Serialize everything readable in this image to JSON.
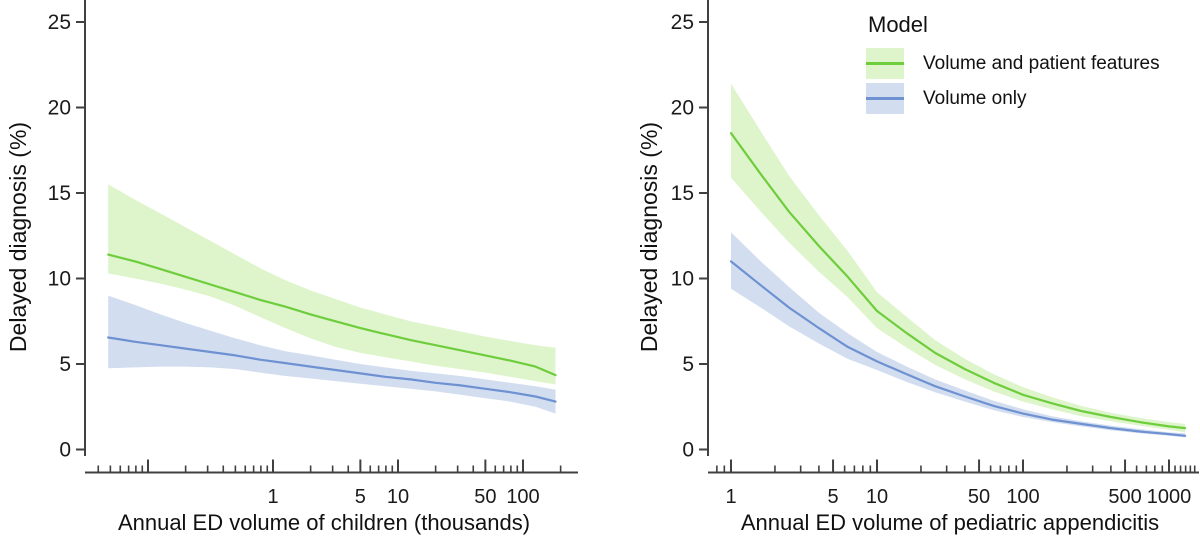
{
  "figure": {
    "legend": {
      "title": "Model",
      "items": [
        {
          "label": "Volume and patient features",
          "line_color": "#6ecd3c",
          "band_color": "#def4cb"
        },
        {
          "label": "Volume only",
          "line_color": "#6e91d2",
          "band_color": "#d2def0"
        }
      ]
    },
    "axis_color": "#404040",
    "text_color": "#1b1b1b"
  },
  "chart_data": [
    {
      "type": "line",
      "panel": "left",
      "xlabel": "Annual ED volume of children (thousands)",
      "ylabel": "Delayed diagnosis (%)",
      "x_scale": "log10",
      "x_range": [
        0.04,
        280
      ],
      "ylim": [
        0,
        26
      ],
      "grid": false,
      "y_axis": {
        "ticks": [
          0,
          5,
          10,
          15,
          20,
          25
        ]
      },
      "x_axis": {
        "labeled_ticks": [
          1,
          5,
          10,
          50,
          100
        ],
        "tall_ticks": [
          0.1,
          1,
          5,
          10,
          50,
          100
        ],
        "minor_ticks": [
          0.04,
          0.05,
          0.06,
          0.07,
          0.08,
          0.09,
          0.2,
          0.3,
          0.4,
          0.5,
          0.6,
          0.7,
          0.8,
          0.9,
          2,
          3,
          4,
          6,
          7,
          8,
          9,
          20,
          30,
          40,
          60,
          70,
          80,
          90,
          200
        ]
      },
      "series": [
        {
          "name": "Volume and patient features",
          "line_color": "#6ecd3c",
          "band_color": "#def4cb",
          "points": [
            {
              "x": 0.048,
              "lo": 10.3,
              "mid": 11.4,
              "hi": 15.5
            },
            {
              "x": 0.079,
              "lo": 10.0,
              "mid": 11.0,
              "hi": 14.6
            },
            {
              "x": 0.126,
              "lo": 9.7,
              "mid": 10.55,
              "hi": 13.8
            },
            {
              "x": 0.2,
              "lo": 9.35,
              "mid": 10.1,
              "hi": 13.0
            },
            {
              "x": 0.316,
              "lo": 8.95,
              "mid": 9.65,
              "hi": 12.2
            },
            {
              "x": 0.5,
              "lo": 8.4,
              "mid": 9.2,
              "hi": 11.4
            },
            {
              "x": 0.79,
              "lo": 7.75,
              "mid": 8.75,
              "hi": 10.6
            },
            {
              "x": 1.26,
              "lo": 7.1,
              "mid": 8.35,
              "hi": 9.9
            },
            {
              "x": 2.0,
              "lo": 6.5,
              "mid": 7.9,
              "hi": 9.3
            },
            {
              "x": 3.16,
              "lo": 6.0,
              "mid": 7.5,
              "hi": 8.8
            },
            {
              "x": 5.0,
              "lo": 5.65,
              "mid": 7.1,
              "hi": 8.3
            },
            {
              "x": 7.9,
              "lo": 5.4,
              "mid": 6.75,
              "hi": 7.9
            },
            {
              "x": 12.6,
              "lo": 5.15,
              "mid": 6.4,
              "hi": 7.5
            },
            {
              "x": 20,
              "lo": 4.9,
              "mid": 6.1,
              "hi": 7.2
            },
            {
              "x": 31.6,
              "lo": 4.7,
              "mid": 5.8,
              "hi": 6.9
            },
            {
              "x": 50,
              "lo": 4.5,
              "mid": 5.5,
              "hi": 6.6
            },
            {
              "x": 79,
              "lo": 4.25,
              "mid": 5.2,
              "hi": 6.35
            },
            {
              "x": 126,
              "lo": 4.0,
              "mid": 4.85,
              "hi": 6.1
            },
            {
              "x": 182,
              "lo": 3.8,
              "mid": 4.35,
              "hi": 5.95
            }
          ]
        },
        {
          "name": "Volume only",
          "line_color": "#6e91d2",
          "band_color": "#d2def0",
          "points": [
            {
              "x": 0.048,
              "lo": 4.75,
              "mid": 6.55,
              "hi": 9.0
            },
            {
              "x": 0.079,
              "lo": 4.8,
              "mid": 6.3,
              "hi": 8.45
            },
            {
              "x": 0.126,
              "lo": 4.85,
              "mid": 6.1,
              "hi": 7.9
            },
            {
              "x": 0.2,
              "lo": 4.85,
              "mid": 5.9,
              "hi": 7.4
            },
            {
              "x": 0.316,
              "lo": 4.8,
              "mid": 5.7,
              "hi": 6.95
            },
            {
              "x": 0.5,
              "lo": 4.7,
              "mid": 5.5,
              "hi": 6.5
            },
            {
              "x": 0.79,
              "lo": 4.5,
              "mid": 5.25,
              "hi": 6.1
            },
            {
              "x": 1.26,
              "lo": 4.3,
              "mid": 5.05,
              "hi": 5.75
            },
            {
              "x": 2.0,
              "lo": 4.15,
              "mid": 4.85,
              "hi": 5.5
            },
            {
              "x": 3.16,
              "lo": 4.0,
              "mid": 4.65,
              "hi": 5.25
            },
            {
              "x": 5.0,
              "lo": 3.85,
              "mid": 4.45,
              "hi": 5.0
            },
            {
              "x": 7.9,
              "lo": 3.7,
              "mid": 4.25,
              "hi": 4.8
            },
            {
              "x": 12.6,
              "lo": 3.55,
              "mid": 4.1,
              "hi": 4.6
            },
            {
              "x": 20,
              "lo": 3.4,
              "mid": 3.9,
              "hi": 4.45
            },
            {
              "x": 31.6,
              "lo": 3.2,
              "mid": 3.75,
              "hi": 4.3
            },
            {
              "x": 50,
              "lo": 3.0,
              "mid": 3.55,
              "hi": 4.1
            },
            {
              "x": 79,
              "lo": 2.8,
              "mid": 3.35,
              "hi": 3.9
            },
            {
              "x": 126,
              "lo": 2.5,
              "mid": 3.1,
              "hi": 3.7
            },
            {
              "x": 182,
              "lo": 2.1,
              "mid": 2.8,
              "hi": 3.5
            }
          ]
        }
      ]
    },
    {
      "type": "line",
      "panel": "right",
      "xlabel": "Annual ED volume of pediatric appendicitis",
      "ylabel": "Delayed diagnosis (%)",
      "x_scale": "log10",
      "x_range": [
        0.7,
        1600
      ],
      "ylim": [
        0,
        26
      ],
      "grid": false,
      "y_axis": {
        "ticks": [
          0,
          5,
          10,
          15,
          20,
          25
        ]
      },
      "x_axis": {
        "labeled_ticks": [
          1,
          5,
          10,
          50,
          100,
          500,
          1000
        ],
        "tall_ticks": [
          1,
          5,
          10,
          50,
          100,
          500,
          1000
        ],
        "minor_ticks": [
          0.8,
          0.9,
          2,
          3,
          4,
          6,
          7,
          8,
          9,
          20,
          30,
          40,
          60,
          70,
          80,
          90,
          200,
          300,
          400,
          600,
          700,
          800,
          900,
          1100,
          1200,
          1300,
          1400,
          1500
        ]
      },
      "series": [
        {
          "name": "Volume and patient features",
          "line_color": "#6ecd3c",
          "band_color": "#def4cb",
          "points": [
            {
              "x": 1,
              "lo": 15.9,
              "mid": 18.5,
              "hi": 21.4
            },
            {
              "x": 1.6,
              "lo": 13.9,
              "mid": 16.1,
              "hi": 18.6
            },
            {
              "x": 2.5,
              "lo": 12.1,
              "mid": 13.9,
              "hi": 16.0
            },
            {
              "x": 4,
              "lo": 10.4,
              "mid": 11.9,
              "hi": 13.7
            },
            {
              "x": 6.3,
              "lo": 8.9,
              "mid": 10.1,
              "hi": 11.6
            },
            {
              "x": 10,
              "lo": 7.1,
              "mid": 8.1,
              "hi": 9.2
            },
            {
              "x": 16,
              "lo": 5.95,
              "mid": 6.8,
              "hi": 7.75
            },
            {
              "x": 25,
              "lo": 4.95,
              "mid": 5.65,
              "hi": 6.4
            },
            {
              "x": 40,
              "lo": 4.1,
              "mid": 4.7,
              "hi": 5.3
            },
            {
              "x": 63,
              "lo": 3.4,
              "mid": 3.9,
              "hi": 4.4
            },
            {
              "x": 100,
              "lo": 2.8,
              "mid": 3.2,
              "hi": 3.65
            },
            {
              "x": 158,
              "lo": 2.35,
              "mid": 2.7,
              "hi": 3.05
            },
            {
              "x": 250,
              "lo": 1.95,
              "mid": 2.25,
              "hi": 2.55
            },
            {
              "x": 400,
              "lo": 1.65,
              "mid": 1.9,
              "hi": 2.15
            },
            {
              "x": 630,
              "lo": 1.4,
              "mid": 1.6,
              "hi": 1.85
            },
            {
              "x": 1000,
              "lo": 1.15,
              "mid": 1.35,
              "hi": 1.6
            },
            {
              "x": 1290,
              "lo": 1.0,
              "mid": 1.25,
              "hi": 1.5
            }
          ]
        },
        {
          "name": "Volume only",
          "line_color": "#6e91d2",
          "band_color": "#d2def0",
          "points": [
            {
              "x": 1,
              "lo": 9.4,
              "mid": 11.0,
              "hi": 12.7
            },
            {
              "x": 1.6,
              "lo": 8.3,
              "mid": 9.6,
              "hi": 11.0
            },
            {
              "x": 2.5,
              "lo": 7.2,
              "mid": 8.3,
              "hi": 9.5
            },
            {
              "x": 4,
              "lo": 6.2,
              "mid": 7.1,
              "hi": 8.0
            },
            {
              "x": 6.3,
              "lo": 5.3,
              "mid": 6.0,
              "hi": 6.8
            },
            {
              "x": 10,
              "lo": 4.65,
              "mid": 5.15,
              "hi": 5.7
            },
            {
              "x": 16,
              "lo": 3.95,
              "mid": 4.4,
              "hi": 4.85
            },
            {
              "x": 25,
              "lo": 3.35,
              "mid": 3.7,
              "hi": 4.1
            },
            {
              "x": 40,
              "lo": 2.8,
              "mid": 3.1,
              "hi": 3.45
            },
            {
              "x": 63,
              "lo": 2.3,
              "mid": 2.55,
              "hi": 2.85
            },
            {
              "x": 100,
              "lo": 1.9,
              "mid": 2.1,
              "hi": 2.35
            },
            {
              "x": 158,
              "lo": 1.6,
              "mid": 1.75,
              "hi": 1.95
            },
            {
              "x": 250,
              "lo": 1.35,
              "mid": 1.5,
              "hi": 1.65
            },
            {
              "x": 400,
              "lo": 1.12,
              "mid": 1.25,
              "hi": 1.4
            },
            {
              "x": 630,
              "lo": 0.95,
              "mid": 1.05,
              "hi": 1.2
            },
            {
              "x": 1000,
              "lo": 0.8,
              "mid": 0.9,
              "hi": 1.0
            },
            {
              "x": 1290,
              "lo": 0.7,
              "mid": 0.8,
              "hi": 0.95
            }
          ]
        }
      ]
    }
  ]
}
